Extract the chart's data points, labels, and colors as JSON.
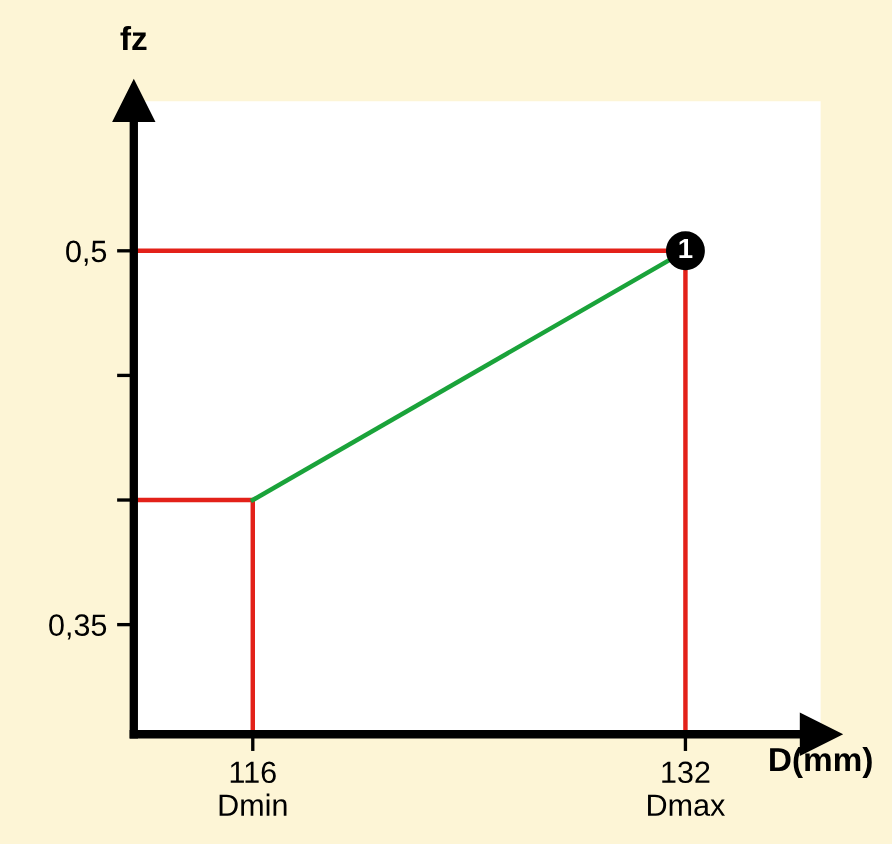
{
  "chart_data": {
    "type": "line",
    "ylabel": "fz",
    "xlabel": "D(mm)",
    "xlim": [
      111.6,
      137
    ],
    "ylim": [
      0.306,
      0.56
    ],
    "xticks": [
      {
        "value": 116,
        "label": "116\nDmin"
      },
      {
        "value": 132,
        "label": "132\nDmax"
      }
    ],
    "yticks": [
      {
        "value": 0.35,
        "label": "0,35"
      },
      {
        "value": 0.4,
        "label": null
      },
      {
        "value": 0.45,
        "label": null
      },
      {
        "value": 0.5,
        "label": "0,5"
      }
    ],
    "series": [
      {
        "color": "#e32119",
        "x": [
          111.6,
          132,
          132
        ],
        "values": [
          0.5,
          0.5,
          0.306
        ]
      },
      {
        "color": "#e32119",
        "x": [
          111.6,
          116,
          116
        ],
        "values": [
          0.4,
          0.4,
          0.306
        ]
      },
      {
        "color": "#1aa33a",
        "x": [
          116,
          132
        ],
        "values": [
          0.4,
          0.5
        ]
      }
    ],
    "annotations": [
      {
        "text": "1",
        "x": 132,
        "y": 0.5
      }
    ],
    "grid": false,
    "legend": false
  }
}
